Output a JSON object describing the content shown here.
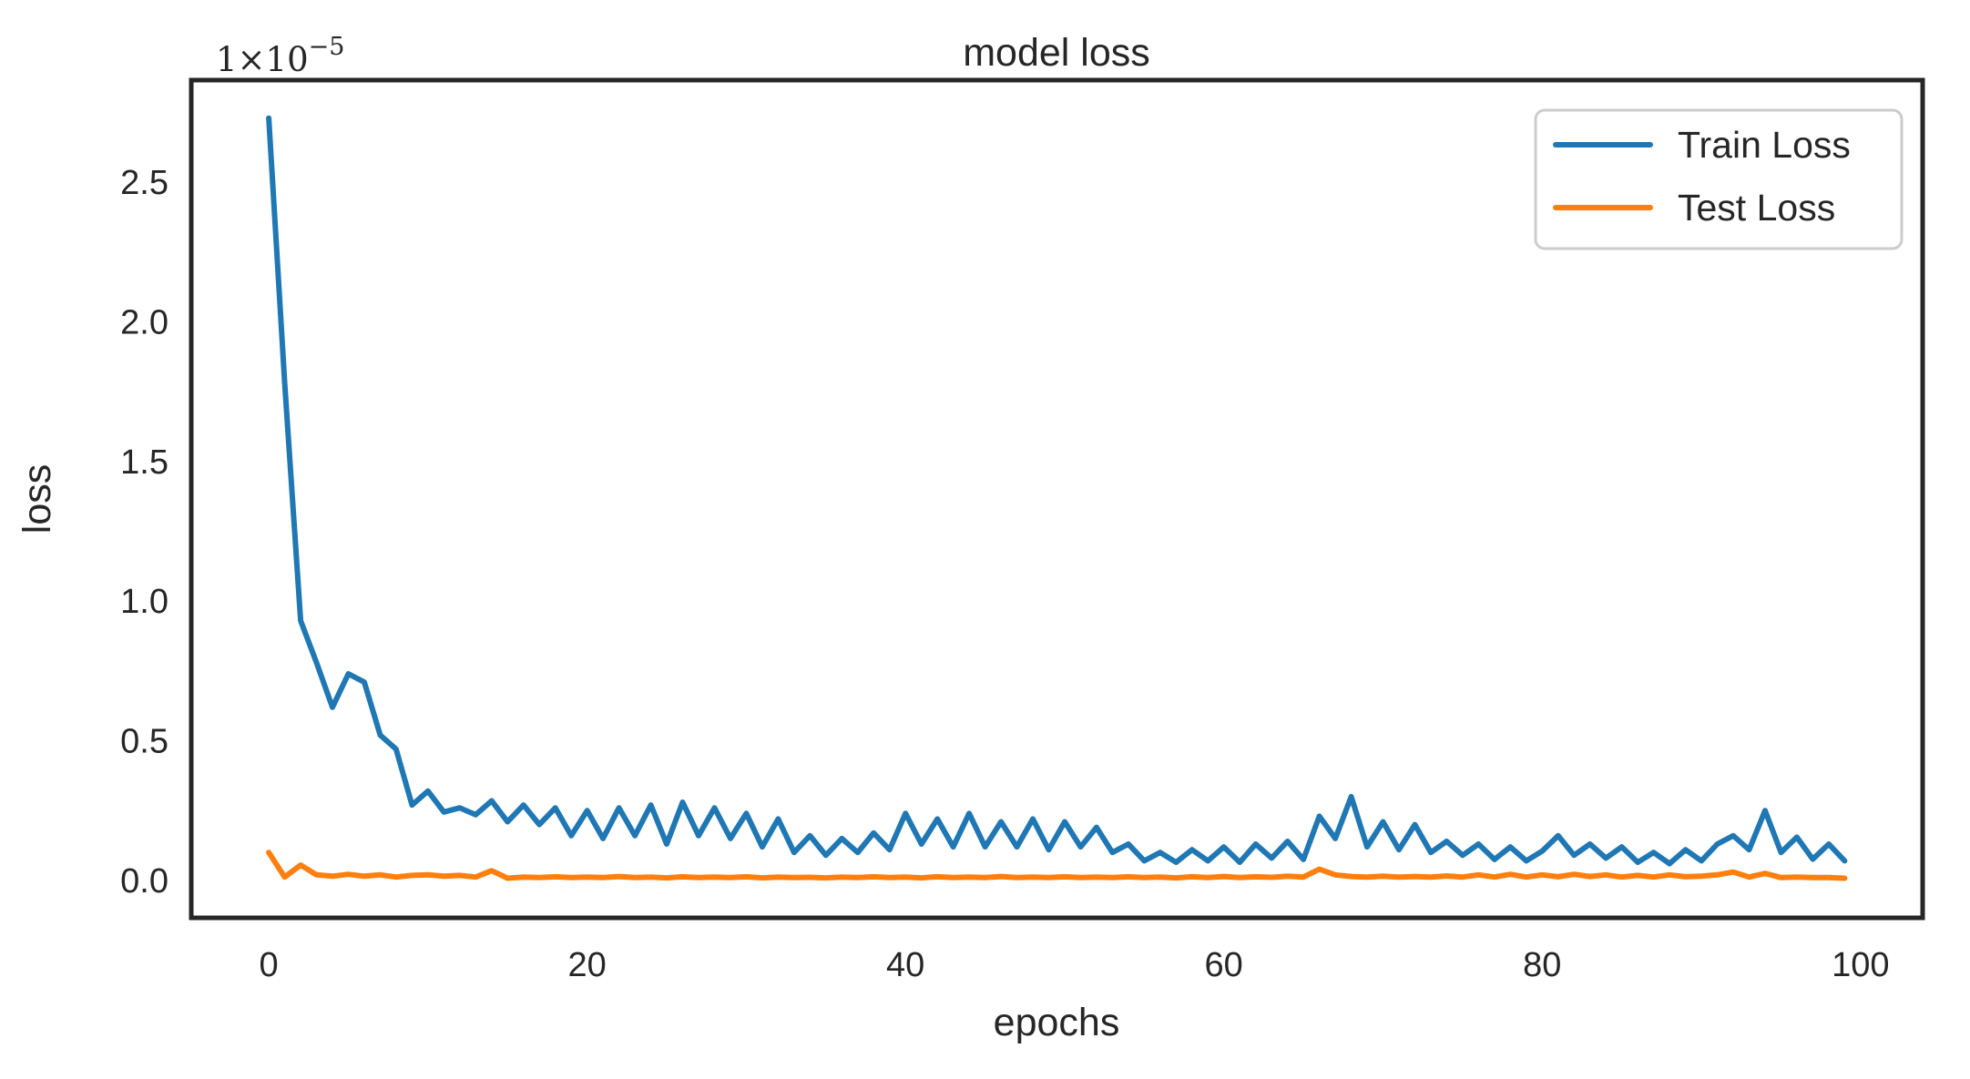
{
  "chart_data": {
    "type": "line",
    "title": "model loss",
    "xlabel": "epochs",
    "ylabel": "loss",
    "y_offset_text": {
      "prefix": "1×10",
      "exponent": "−5",
      "full": "1×10⁻⁵"
    },
    "x_ticks": [
      "0",
      "20",
      "40",
      "60",
      "80",
      "100"
    ],
    "x_tick_values": [
      0,
      20,
      40,
      60,
      80,
      100
    ],
    "y_ticks": [
      "0.0",
      "0.5",
      "1.0",
      "1.5",
      "2.0",
      "2.5"
    ],
    "y_tick_values": [
      0.0,
      0.5,
      1.0,
      1.5,
      2.0,
      2.5
    ],
    "xlim": [
      -4.87,
      103.9
    ],
    "ylim": [
      -0.134,
      2.866
    ],
    "y_unit_scale": "1e-5",
    "grid": false,
    "legend_position": "upper right",
    "x": "epoch index 0..99",
    "series": [
      {
        "name": "Train Loss",
        "color": "#1f77b4",
        "values": [
          2.73,
          1.78,
          0.93,
          0.78,
          0.62,
          0.74,
          0.71,
          0.52,
          0.47,
          0.27,
          0.32,
          0.245,
          0.26,
          0.235,
          0.285,
          0.21,
          0.27,
          0.2,
          0.26,
          0.16,
          0.25,
          0.15,
          0.26,
          0.16,
          0.27,
          0.13,
          0.28,
          0.16,
          0.26,
          0.15,
          0.24,
          0.12,
          0.22,
          0.1,
          0.16,
          0.09,
          0.15,
          0.1,
          0.17,
          0.11,
          0.24,
          0.13,
          0.22,
          0.12,
          0.24,
          0.12,
          0.21,
          0.12,
          0.22,
          0.11,
          0.21,
          0.12,
          0.19,
          0.1,
          0.13,
          0.07,
          0.1,
          0.065,
          0.11,
          0.07,
          0.12,
          0.065,
          0.13,
          0.08,
          0.14,
          0.075,
          0.23,
          0.15,
          0.3,
          0.12,
          0.21,
          0.11,
          0.2,
          0.1,
          0.14,
          0.09,
          0.13,
          0.075,
          0.12,
          0.07,
          0.105,
          0.16,
          0.09,
          0.13,
          0.08,
          0.12,
          0.065,
          0.1,
          0.06,
          0.11,
          0.07,
          0.13,
          0.16,
          0.11,
          0.25,
          0.1,
          0.155,
          0.076,
          0.13,
          0.07
        ]
      },
      {
        "name": "Test Loss",
        "color": "#ff7f0e",
        "values": [
          0.1,
          0.012,
          0.055,
          0.02,
          0.015,
          0.022,
          0.015,
          0.02,
          0.012,
          0.018,
          0.02,
          0.015,
          0.018,
          0.012,
          0.035,
          0.008,
          0.012,
          0.01,
          0.013,
          0.01,
          0.012,
          0.01,
          0.014,
          0.01,
          0.012,
          0.009,
          0.013,
          0.01,
          0.012,
          0.01,
          0.013,
          0.009,
          0.012,
          0.01,
          0.011,
          0.009,
          0.012,
          0.01,
          0.013,
          0.01,
          0.012,
          0.009,
          0.013,
          0.01,
          0.012,
          0.01,
          0.014,
          0.01,
          0.012,
          0.01,
          0.013,
          0.01,
          0.012,
          0.01,
          0.013,
          0.01,
          0.012,
          0.009,
          0.013,
          0.01,
          0.014,
          0.01,
          0.013,
          0.011,
          0.015,
          0.012,
          0.04,
          0.02,
          0.014,
          0.012,
          0.015,
          0.012,
          0.014,
          0.012,
          0.016,
          0.012,
          0.02,
          0.012,
          0.022,
          0.012,
          0.02,
          0.013,
          0.022,
          0.014,
          0.02,
          0.012,
          0.018,
          0.012,
          0.02,
          0.013,
          0.015,
          0.02,
          0.03,
          0.012,
          0.025,
          0.01,
          0.012,
          0.01,
          0.01,
          0.008
        ]
      }
    ],
    "legend": [
      {
        "label": "Train Loss",
        "color": "#1f77b4"
      },
      {
        "label": "Test Loss",
        "color": "#ff7f0e"
      }
    ],
    "colors": {
      "train": "#1f77b4",
      "test": "#ff7f0e",
      "spine": "#262626",
      "text": "#262626",
      "legend_border": "#cccccc",
      "background": "#ffffff"
    }
  }
}
